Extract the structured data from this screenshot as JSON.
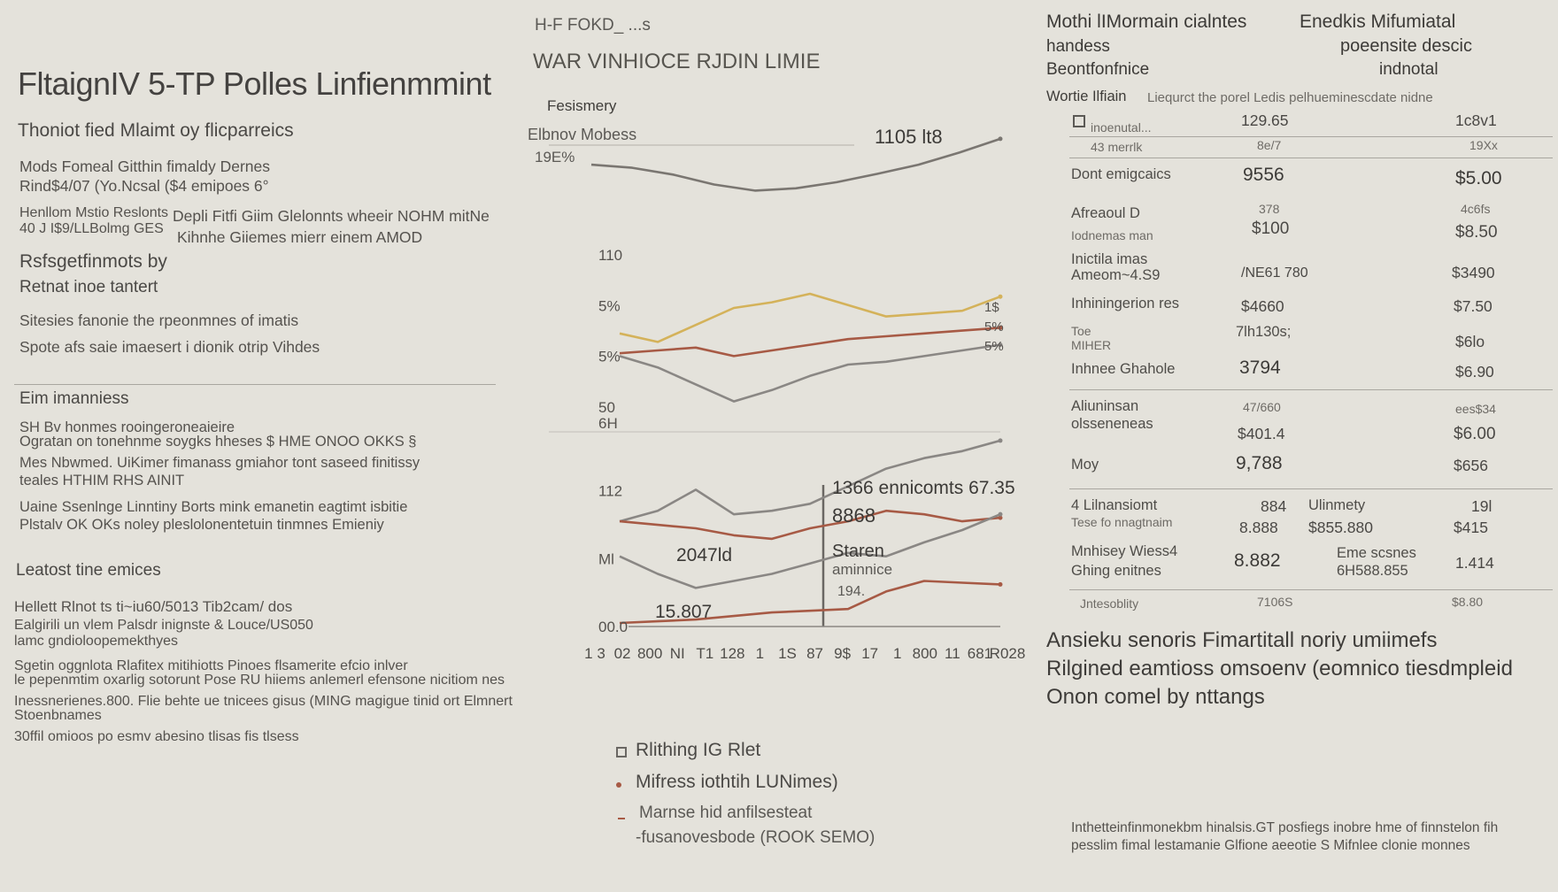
{
  "page": {
    "title": "FltaignIV 5-TP Polles Linfienmmint"
  },
  "left": {
    "intro_heading": "Thoniot fied Mlaimt oy flicparreics",
    "intro_lines": [
      "Mods Fomeal Gitthin fimaldy Dernes",
      "Rind$4/07 (Yo.Ncsal ($4 emipoes 6°",
      "Henllom Mstio Reslonts",
      "40 J I$9/LLBolmg GES"
    ],
    "intro_side": [
      "Depli Fitfi Giim Glelonnts wheeir NOHM mitNe",
      "Kihnhe Giiemes mierr einem AMOD"
    ],
    "sub_heading": "Rsfsgetfinmots by",
    "sub_text": "Retnat inoe tantert",
    "sub_lines": [
      "Sitesies fanonie the rpeonmnes of imatis",
      "Spote afs saie imaesert i dionik otrip Vihdes"
    ],
    "eim_heading": "Eim imanniess",
    "eim_lines": [
      "SH Bv honmes rooingeroneaieire",
      "Ogratan on tonehnme soygks hheses $ HME ONOO OKKS §",
      "Mes Nbwmed. UiKimer fimanass gmiahor tont saseed finitissy",
      "teales HTHIM RHS AINIT",
      "Uaine Ssenlnge Linntiny Borts mink emanetin eagtimt isbitie",
      "Plstalv OK OKs noley pleslolonentetuin tinmnes Emieniy"
    ],
    "least_heading": "Leatost tine emices",
    "least_lines": [
      "Hellett Rlnot ts ti~iu60/5013 Tib2cam/ dos",
      "Ealgirili un vlem Palsdr inignste & Louce/US050",
      "lamc gndioloopemekthyes",
      "Sgetin oggnlota Rlafitex mitihiotts Pinoes flsamerite efcio inlver",
      "le pepenmtim oxarlig sotorunt Pose RU hiiems anlemerl efensone nicitiom nes",
      "Inessnerienes.800. Flie behte ue tnicees gisus (MING magigue tinid ort Elmnert",
      "Stoenbnames",
      "30ffil omioos po esmv abesino tlisas fis tlsess"
    ]
  },
  "chart_header": {
    "top_small": "H-F FOKD_ ...s",
    "subtitle": "WAR VINHIOCE RJDIN LIMIE",
    "series_label": "Fesismery",
    "metric_label": "Elbnov Mobess",
    "metric_value": "1105 lt8",
    "y_top_label": "19E%"
  },
  "chart_data": [
    {
      "type": "line",
      "name": "upper",
      "title": "WAR VINHIOCE RJDIN LIMIE",
      "x": [
        0,
        1,
        2,
        3,
        4,
        5,
        6,
        7,
        8,
        9,
        10
      ],
      "series": [
        {
          "values": [
            58,
            54,
            45,
            32,
            24,
            27,
            35,
            46,
            58,
            74,
            92
          ],
          "color": "#7a7671"
        }
      ],
      "annotations": [
        "1105 lt8"
      ],
      "ylim": [
        0,
        100
      ]
    },
    {
      "type": "line",
      "name": "middle",
      "y_ticks": [
        "110",
        "5%",
        "5%",
        "50"
      ],
      "right_ticks": [
        "1$",
        "5%",
        "5%"
      ],
      "series": [
        {
          "values": [
            52,
            46,
            58,
            70,
            74,
            80,
            72,
            64,
            66,
            68,
            78
          ],
          "color": "#d4b25a"
        },
        {
          "values": [
            38,
            40,
            42,
            36,
            40,
            44,
            48,
            50,
            52,
            54,
            56
          ],
          "color": "#a75a45"
        },
        {
          "values": [
            36,
            28,
            16,
            4,
            12,
            22,
            30,
            32,
            36,
            40,
            44
          ],
          "color": "#8a8784"
        }
      ],
      "ylim": [
        0,
        100
      ]
    },
    {
      "type": "line",
      "name": "lower",
      "y_ticks": [
        "6H",
        "112",
        "Ml",
        "00.0"
      ],
      "x_ticks": [
        "1 3",
        "02",
        "800",
        "NI",
        "T1",
        "128",
        "1",
        "1S",
        "87",
        "9$",
        "17",
        "1",
        "800",
        "11",
        "681",
        "R028"
      ],
      "annotations": [
        "1366 ennicomts 67.35",
        "8868",
        "2047ld",
        "15.807",
        "Staren",
        "aminnice",
        "194."
      ],
      "series": [
        {
          "values": [
            60,
            66,
            78,
            64,
            66,
            70,
            80,
            90,
            96,
            100,
            106
          ],
          "color": "#8a8784"
        },
        {
          "values": [
            60,
            58,
            56,
            52,
            50,
            56,
            60,
            66,
            64,
            60,
            62
          ],
          "color": "#a75a45"
        },
        {
          "values": [
            40,
            30,
            22,
            26,
            30,
            36,
            42,
            40,
            48,
            55,
            64
          ],
          "color": "#8a8784"
        },
        {
          "values": [
            2,
            3,
            4,
            6,
            8,
            9,
            10,
            20,
            26,
            25,
            24
          ],
          "color": "#a75a45"
        }
      ],
      "ylim": [
        0,
        110
      ]
    }
  ],
  "legend": {
    "items": [
      {
        "label": "Rlithing IG Rlet",
        "marker": "square"
      },
      {
        "label": "Mifress iothtih LUNimes)",
        "marker": "dot"
      },
      {
        "label": "Marnse hid anfilsesteat",
        "marker": "dash"
      }
    ],
    "sub": "-fusanovesbode (ROOK SEMO)"
  },
  "table": {
    "head_left": [
      "Mothi lIMormain cialntes",
      "handess",
      "Beontfonfnice"
    ],
    "head_right": [
      "Enedkis Mifumiatal",
      "poeensite descic",
      "indnotal"
    ],
    "note_label": "Wortie Ilfiain",
    "note_text": "Liequrct the porel Ledis pelhueminescdate nidne",
    "rows": [
      {
        "l1": "inoenutal...",
        "l2": "43 merrlk",
        "v1": "129.65",
        "v1b": "8e/7",
        "v2": "1c8v1",
        "v2b": "19Xx"
      },
      {
        "l1": "Dont emigcaics",
        "l2": "",
        "v1": "9556",
        "v1b": "",
        "v2": "$5.00",
        "v2b": ""
      },
      {
        "l1": "Afreaoul D",
        "l2": "Iodnemas man",
        "v1": "$100",
        "v1b": "378",
        "v2": "$8.50",
        "v2b": "4c6fs"
      },
      {
        "l1": "Inictila imas",
        "l2": "Ameom~4.S9",
        "v1": "/NE61 780",
        "v1b": "",
        "v2": "$3490",
        "v2b": ""
      },
      {
        "l1": "Inhiningerion res",
        "l2": "",
        "v1": "$4660",
        "v1b": "",
        "v2": "$7.50",
        "v2b": ""
      },
      {
        "l1": "Toe",
        "l2": "MIHER",
        "v1": "7lh130s;",
        "v1b": "",
        "v2": "$6lo",
        "v2b": ""
      },
      {
        "l1": "Inhnee Ghahole",
        "l2": "",
        "v1": "3794",
        "v1b": "",
        "v2": "$6.90",
        "v2b": ""
      },
      {
        "l1": "Aliuninsan",
        "l2": "olsseneneas",
        "v1": "$401.4",
        "v1b": "47/660",
        "v2": "$6.00",
        "v2b": "ees$34"
      },
      {
        "l1": "Moy",
        "l2": "",
        "v1": "9,788",
        "v1b": "",
        "v2": "$656",
        "v2b": ""
      }
    ],
    "sub_rows": [
      {
        "l1": "4 Lilnansiomt",
        "l2": "Tese fo nnagtnaim",
        "v1": "884",
        "v1b": "8.888",
        "m": "Ulinmety",
        "mb": "$855.880",
        "v2": "19l",
        "v2b": "$415"
      },
      {
        "l1": "Mnhisey Wiess4",
        "l2": "Ghing enitnes",
        "v1": "8.882",
        "v1b": "",
        "m": "Eme scsnes",
        "mb": "6H588.855",
        "v2": "1.414",
        "v2b": ""
      }
    ],
    "footer_label": "Jntesoblity",
    "footer_v1": "7106S",
    "footer_v2": "$8.80"
  },
  "right_note": [
    "Ansieku senoris Fimartitall noriy umiimefs",
    "Rilgined eamtioss omsoenv (eomnico tiesdmpleid",
    "Onon comel by nttangs"
  ],
  "right_footer": [
    "Inthetteinfinmonekbm hinalsis.GT posfiegs inobre hme of finnstelon fih",
    "pesslim fimal lestamanie Glfione aeeotie S Mifnlee clonie monnes"
  ],
  "colors": {
    "background": "#e4e2db",
    "gold": "#d4b25a",
    "rust": "#a75a45",
    "grey": "#8a8784"
  }
}
